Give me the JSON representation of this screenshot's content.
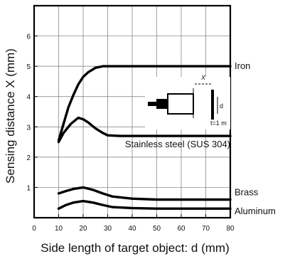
{
  "chart_data": {
    "type": "line",
    "xlabel": "Side length of target object: d (mm)",
    "ylabel": "Sensing distance X (mm)",
    "xlim": [
      0,
      80
    ],
    "ylim": [
      0,
      7
    ],
    "x_ticks": [
      "0",
      "10",
      "20",
      "30",
      "40",
      "50",
      "60",
      "70",
      "80"
    ],
    "y_ticks": [
      "1",
      "2",
      "3",
      "4",
      "5",
      "6"
    ],
    "grid": true,
    "series": [
      {
        "name": "Iron",
        "x": [
          10,
          12,
          14,
          16,
          18,
          20,
          22,
          25,
          28,
          30,
          35,
          40,
          50,
          60,
          70,
          80
        ],
        "y": [
          2.55,
          3.1,
          3.65,
          4.05,
          4.4,
          4.65,
          4.8,
          4.95,
          5.0,
          5.0,
          5.0,
          5.0,
          5.0,
          5.0,
          5.0,
          5.0
        ]
      },
      {
        "name": "Stainless steel (SUS 304)",
        "x": [
          10,
          12,
          15,
          18,
          20,
          22,
          25,
          28,
          30,
          35,
          40,
          50,
          60,
          70,
          80
        ],
        "y": [
          2.5,
          2.8,
          3.1,
          3.3,
          3.25,
          3.15,
          2.95,
          2.8,
          2.72,
          2.7,
          2.7,
          2.7,
          2.7,
          2.7,
          2.7
        ]
      },
      {
        "name": "Brass",
        "x": [
          10,
          13,
          16,
          20,
          24,
          28,
          32,
          40,
          50,
          60,
          70,
          80
        ],
        "y": [
          0.8,
          0.88,
          0.95,
          1.0,
          0.92,
          0.8,
          0.7,
          0.63,
          0.6,
          0.6,
          0.6,
          0.6
        ]
      },
      {
        "name": "Aluminum",
        "x": [
          10,
          13,
          16,
          20,
          24,
          28,
          32,
          40,
          50,
          60,
          70,
          80
        ],
        "y": [
          0.3,
          0.42,
          0.5,
          0.55,
          0.5,
          0.42,
          0.35,
          0.32,
          0.3,
          0.3,
          0.3,
          0.3
        ]
      }
    ],
    "inset": {
      "x_label": "X",
      "d_label": "d",
      "t_label": "t=1 m"
    }
  }
}
